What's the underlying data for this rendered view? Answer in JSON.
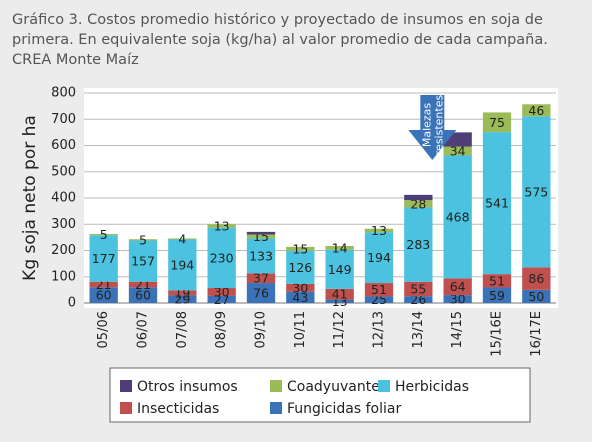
{
  "chart_data": {
    "type": "stacked_bar",
    "title": [
      "Gráfico 3. Costos promedio histórico y proyectado de insumos en soja de",
      "primera. En equivalente soja (kg/ha) al valor promedio de cada campaña.",
      "CREA Monte Maíz"
    ],
    "y_label": "Kg soja neto por ha",
    "annotation": [
      "Malezas",
      "resistentes"
    ],
    "categories": [
      "05/06",
      "06/07",
      "07/08",
      "08/09",
      "09/10",
      "10/11",
      "11/12",
      "12/13",
      "13/14",
      "14/15",
      "15/16E",
      "16/17E"
    ],
    "series": [
      {
        "name": "Fungicidas foliar",
        "color": "#3b73b9",
        "labels": true,
        "values": [
          60,
          60,
          29,
          27,
          76,
          43,
          13,
          25,
          26,
          30,
          59,
          50
        ]
      },
      {
        "name": "Insecticidas",
        "color": "#c0504d",
        "labels": true,
        "values": [
          21,
          21,
          19,
          30,
          37,
          30,
          41,
          51,
          55,
          64,
          51,
          86
        ]
      },
      {
        "name": "Herbicidas",
        "color": "#4bc3e0",
        "labels": true,
        "values": [
          177,
          157,
          194,
          230,
          133,
          126,
          149,
          194,
          283,
          468,
          541,
          575
        ]
      },
      {
        "name": "Coadyuvantes",
        "color": "#9bbb59",
        "labels": true,
        "values": [
          5,
          5,
          4,
          13,
          15,
          15,
          14,
          13,
          28,
          34,
          75,
          46
        ]
      },
      {
        "name": "Otros insumos",
        "color": "#4f3d78",
        "labels": false,
        "values": [
          0,
          0,
          0,
          0,
          10,
          0,
          0,
          0,
          20,
          54,
          0,
          0
        ]
      }
    ],
    "ylim": [
      0,
      800
    ],
    "yticks": [
      0,
      100,
      200,
      300,
      400,
      500,
      600,
      700,
      800
    ],
    "grid": true
  }
}
